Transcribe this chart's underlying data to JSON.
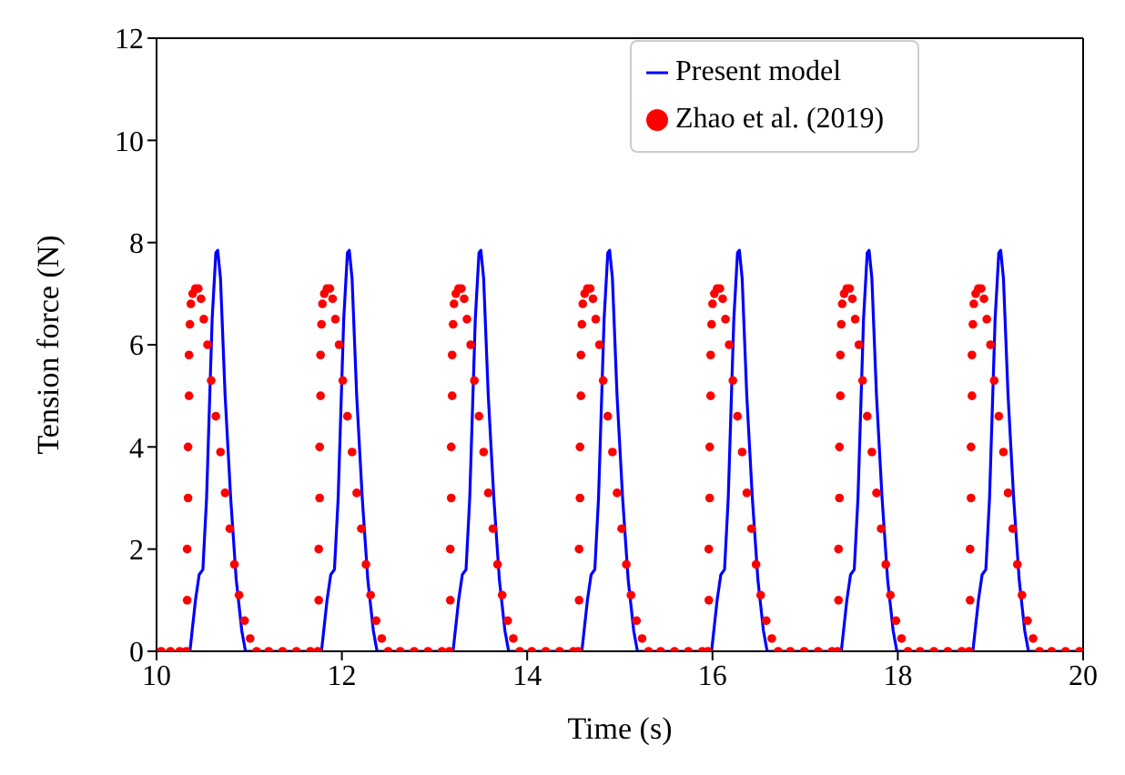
{
  "chart_data": {
    "type": "line",
    "xlabel": "Time (s)",
    "ylabel": "Tension force (N)",
    "xlim": [
      10,
      20
    ],
    "xticks": [
      10,
      12,
      14,
      16,
      18,
      20
    ],
    "ylim": [
      0,
      12
    ],
    "yticks": [
      0,
      2,
      4,
      6,
      8,
      10,
      12
    ],
    "grid": false,
    "legend": "top right",
    "series": [
      {
        "name": "Present model",
        "color": "#0000ff",
        "line_style": "solid",
        "marker": "none",
        "x": [
          10,
          10.36,
          10.42,
          10.46,
          10.5,
          10.54,
          10.6,
          10.64,
          10.66,
          10.69,
          10.74,
          10.8,
          10.86,
          10.92,
          10.96,
          11.78,
          11.84,
          11.88,
          11.92,
          11.96,
          12.02,
          12.06,
          12.08,
          12.11,
          12.16,
          12.22,
          12.28,
          12.34,
          12.38,
          13.2,
          13.26,
          13.3,
          13.34,
          13.38,
          13.44,
          13.48,
          13.5,
          13.53,
          13.58,
          13.64,
          13.7,
          13.76,
          13.8,
          14.59,
          14.65,
          14.69,
          14.73,
          14.77,
          14.83,
          14.87,
          14.89,
          14.92,
          14.97,
          15.03,
          15.09,
          15.15,
          15.19,
          15.99,
          16.05,
          16.09,
          16.13,
          16.17,
          16.23,
          16.27,
          16.29,
          16.32,
          16.37,
          16.43,
          16.49,
          16.55,
          16.59,
          17.39,
          17.45,
          17.49,
          17.53,
          17.57,
          17.63,
          17.67,
          17.69,
          17.72,
          17.77,
          17.83,
          17.89,
          17.95,
          17.99,
          18.81,
          18.87,
          18.91,
          18.95,
          18.99,
          19.05,
          19.09,
          19.11,
          19.14,
          19.19,
          19.25,
          19.31,
          19.37,
          19.41,
          20
        ],
        "values": [
          0,
          0,
          1.0,
          1.5,
          1.6,
          3.0,
          6.5,
          7.8,
          7.85,
          7.3,
          5.0,
          3.0,
          1.4,
          0.4,
          0,
          0,
          1.0,
          1.5,
          1.6,
          3.0,
          6.5,
          7.8,
          7.85,
          7.3,
          5.0,
          3.0,
          1.4,
          0.4,
          0,
          0,
          1.0,
          1.5,
          1.6,
          3.0,
          6.5,
          7.8,
          7.85,
          7.3,
          5.0,
          3.0,
          1.4,
          0.4,
          0,
          0,
          1.0,
          1.5,
          1.6,
          3.0,
          6.5,
          7.8,
          7.85,
          7.3,
          5.0,
          3.0,
          1.4,
          0.4,
          0,
          0,
          1.0,
          1.5,
          1.6,
          3.0,
          6.5,
          7.8,
          7.85,
          7.3,
          5.0,
          3.0,
          1.4,
          0.4,
          0,
          0,
          1.0,
          1.5,
          1.6,
          3.0,
          6.5,
          7.8,
          7.85,
          7.3,
          5.0,
          3.0,
          1.4,
          0.4,
          0,
          0,
          1.0,
          1.5,
          1.6,
          3.0,
          6.5,
          7.8,
          7.85,
          7.3,
          5.0,
          3.0,
          1.4,
          0.4,
          0,
          0
        ]
      },
      {
        "name": "Zhao et al. (2019)",
        "type": "scatter",
        "color": "#ff0000",
        "marker": "circle",
        "x": [
          10.05,
          10.15,
          10.25,
          10.32,
          10.33,
          10.33,
          10.34,
          10.34,
          10.35,
          10.35,
          10.36,
          10.37,
          10.39,
          10.42,
          10.45,
          10.48,
          10.51,
          10.55,
          10.59,
          10.64,
          10.69,
          10.74,
          10.79,
          10.84,
          10.89,
          10.95,
          11.01,
          11.08,
          11.21,
          11.36,
          11.51,
          11.66,
          11.74,
          11.75,
          11.75,
          11.76,
          11.76,
          11.77,
          11.77,
          11.78,
          11.79,
          11.81,
          11.84,
          11.87,
          11.9,
          11.93,
          11.97,
          12.01,
          12.06,
          12.11,
          12.16,
          12.21,
          12.26,
          12.31,
          12.37,
          12.43,
          12.5,
          12.63,
          12.78,
          12.93,
          13.08,
          13.16,
          13.17,
          13.17,
          13.18,
          13.18,
          13.19,
          13.19,
          13.2,
          13.21,
          13.23,
          13.26,
          13.29,
          13.32,
          13.35,
          13.39,
          13.43,
          13.48,
          13.53,
          13.58,
          13.63,
          13.68,
          13.73,
          13.79,
          13.85,
          13.92,
          14.05,
          14.2,
          14.35,
          14.5,
          14.55,
          14.56,
          14.56,
          14.57,
          14.57,
          14.58,
          14.58,
          14.59,
          14.6,
          14.62,
          14.65,
          14.68,
          14.71,
          14.74,
          14.78,
          14.82,
          14.87,
          14.92,
          14.97,
          15.02,
          15.07,
          15.12,
          15.18,
          15.24,
          15.31,
          15.44,
          15.59,
          15.74,
          15.89,
          15.95,
          15.96,
          15.96,
          15.97,
          15.97,
          15.98,
          15.98,
          15.99,
          16,
          16.02,
          16.05,
          16.08,
          16.11,
          16.14,
          16.18,
          16.22,
          16.27,
          16.32,
          16.37,
          16.42,
          16.47,
          16.52,
          16.58,
          16.64,
          16.71,
          16.84,
          16.99,
          17.14,
          17.29,
          17.35,
          17.36,
          17.36,
          17.37,
          17.37,
          17.38,
          17.38,
          17.39,
          17.4,
          17.42,
          17.45,
          17.48,
          17.51,
          17.54,
          17.58,
          17.62,
          17.67,
          17.72,
          17.77,
          17.82,
          17.87,
          17.92,
          17.98,
          18.04,
          18.11,
          18.24,
          18.39,
          18.54,
          18.69,
          18.77,
          18.78,
          18.78,
          18.79,
          18.79,
          18.8,
          18.8,
          18.81,
          18.82,
          18.84,
          18.87,
          18.9,
          18.93,
          18.96,
          19,
          19.04,
          19.09,
          19.14,
          19.19,
          19.24,
          19.29,
          19.34,
          19.4,
          19.46,
          19.53,
          19.66,
          19.81,
          19.96
        ],
        "values": [
          0,
          0,
          0,
          0,
          1.0,
          2.0,
          3.0,
          4.0,
          5.0,
          5.8,
          6.4,
          6.8,
          7.0,
          7.1,
          7.1,
          6.9,
          6.5,
          6.0,
          5.3,
          4.6,
          3.9,
          3.1,
          2.4,
          1.7,
          1.1,
          0.6,
          0.25,
          0,
          0,
          0,
          0,
          0,
          0,
          1.0,
          2.0,
          3.0,
          4.0,
          5.0,
          5.8,
          6.4,
          6.8,
          7.0,
          7.1,
          7.1,
          6.9,
          6.5,
          6.0,
          5.3,
          4.6,
          3.9,
          3.1,
          2.4,
          1.7,
          1.1,
          0.6,
          0.25,
          0,
          0,
          0,
          0,
          0,
          0,
          1.0,
          2.0,
          3.0,
          4.0,
          5.0,
          5.8,
          6.4,
          6.8,
          7.0,
          7.1,
          7.1,
          6.9,
          6.5,
          6.0,
          5.3,
          4.6,
          3.9,
          3.1,
          2.4,
          1.7,
          1.1,
          0.6,
          0.25,
          0,
          0,
          0,
          0,
          0,
          0,
          1.0,
          2.0,
          3.0,
          4.0,
          5.0,
          5.8,
          6.4,
          6.8,
          7.0,
          7.1,
          7.1,
          6.9,
          6.5,
          6.0,
          5.3,
          4.6,
          3.9,
          3.1,
          2.4,
          1.7,
          1.1,
          0.6,
          0.25,
          0,
          0,
          0,
          0,
          0,
          0,
          1.0,
          2.0,
          3.0,
          4.0,
          5.0,
          5.8,
          6.4,
          6.8,
          7.0,
          7.1,
          7.1,
          6.9,
          6.5,
          6.0,
          5.3,
          4.6,
          3.9,
          3.1,
          2.4,
          1.7,
          1.1,
          0.6,
          0.25,
          0,
          0,
          0,
          0,
          0,
          0,
          1.0,
          2.0,
          3.0,
          4.0,
          5.0,
          5.8,
          6.4,
          6.8,
          7.0,
          7.1,
          7.1,
          6.9,
          6.5,
          6.0,
          5.3,
          4.6,
          3.9,
          3.1,
          2.4,
          1.7,
          1.1,
          0.6,
          0.25,
          0,
          0,
          0,
          0,
          0,
          0,
          1.0,
          2.0,
          3.0,
          4.0,
          5.0,
          5.8,
          6.4,
          6.8,
          7.0,
          7.1,
          7.1,
          6.9,
          6.5,
          6.0,
          5.3,
          4.6,
          3.9,
          3.1,
          2.4,
          1.7,
          1.1,
          0.6,
          0.25,
          0,
          0,
          0,
          0
        ]
      }
    ]
  }
}
